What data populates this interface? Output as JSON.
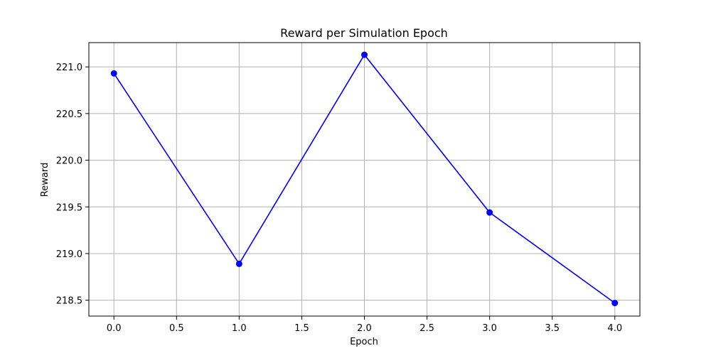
{
  "chart_data": {
    "type": "line",
    "title": "Reward per Simulation Epoch",
    "xlabel": "Epoch",
    "ylabel": "Reward",
    "xlim": [
      -0.2,
      4.2
    ],
    "ylim": [
      218.33,
      221.26
    ],
    "x_ticks": [
      0.0,
      0.5,
      1.0,
      1.5,
      2.0,
      2.5,
      3.0,
      3.5,
      4.0
    ],
    "x_tick_labels": [
      "0.0",
      "0.5",
      "1.0",
      "1.5",
      "2.0",
      "2.5",
      "3.0",
      "3.5",
      "4.0"
    ],
    "y_ticks": [
      218.5,
      219.0,
      219.5,
      220.0,
      220.5,
      221.0
    ],
    "y_tick_labels": [
      "218.5",
      "219.0",
      "219.5",
      "220.0",
      "220.5",
      "221.0"
    ],
    "grid": true,
    "series": [
      {
        "color": "#0000ff",
        "marker": "circle",
        "x": [
          0,
          1,
          2,
          3,
          4
        ],
        "y": [
          220.93,
          218.89,
          221.13,
          219.44,
          218.47
        ]
      }
    ]
  }
}
